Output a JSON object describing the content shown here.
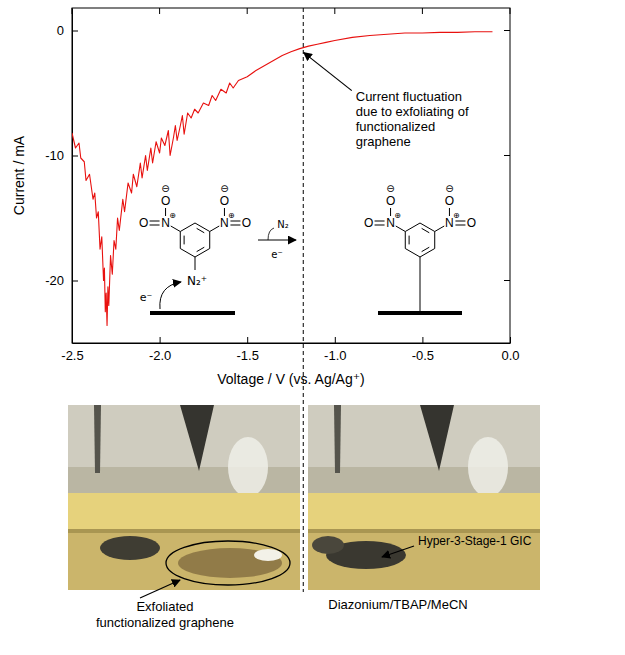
{
  "chart_data": {
    "type": "line",
    "xlabel": "Voltage / V (vs. Ag/Ag⁺)",
    "ylabel": "Current / mA",
    "color": "#e8110f",
    "x": [
      -0.1,
      -0.2,
      -0.3,
      -0.4,
      -0.5,
      -0.6,
      -0.7,
      -0.8,
      -0.9,
      -1.0,
      -1.05,
      -1.1,
      -1.15,
      -1.2,
      -1.25,
      -1.3,
      -1.35,
      -1.4,
      -1.45,
      -1.5,
      -1.55,
      -1.58,
      -1.6,
      -1.62,
      -1.65,
      -1.68,
      -1.7,
      -1.72,
      -1.75,
      -1.78,
      -1.8,
      -1.82,
      -1.84,
      -1.86,
      -1.87,
      -1.88,
      -1.9,
      -1.91,
      -1.92,
      -1.94,
      -1.95,
      -1.97,
      -1.99,
      -2.0,
      -2.02,
      -2.04,
      -2.05,
      -2.07,
      -2.08,
      -2.1,
      -2.11,
      -2.13,
      -2.15,
      -2.16,
      -2.18,
      -2.2,
      -2.21,
      -2.23,
      -2.24,
      -2.25,
      -2.26,
      -2.27,
      -2.28,
      -2.29,
      -2.295,
      -2.3,
      -2.305,
      -2.31,
      -2.315,
      -2.32,
      -2.33,
      -2.34,
      -2.35,
      -2.36,
      -2.37,
      -2.38,
      -2.4,
      -2.42,
      -2.43,
      -2.45,
      -2.46,
      -2.48,
      -2.5
    ],
    "values": [
      -0.1,
      -0.1,
      -0.15,
      -0.15,
      -0.2,
      -0.2,
      -0.3,
      -0.4,
      -0.55,
      -0.8,
      -0.95,
      -1.1,
      -1.25,
      -1.45,
      -1.7,
      -2.0,
      -2.4,
      -2.8,
      -3.2,
      -3.7,
      -4.0,
      -4.6,
      -4.2,
      -5.0,
      -4.7,
      -5.6,
      -5.2,
      -6.0,
      -5.8,
      -6.6,
      -6.3,
      -7.0,
      -6.6,
      -8.3,
      -6.8,
      -7.5,
      -8.8,
      -7.6,
      -8.5,
      -10.0,
      -8.0,
      -9.2,
      -8.6,
      -9.8,
      -8.9,
      -10.6,
      -9.4,
      -11.2,
      -10.0,
      -11.8,
      -10.6,
      -12.5,
      -11.5,
      -13.0,
      -12.2,
      -14.5,
      -13.5,
      -16.0,
      -15.0,
      -17.5,
      -16.8,
      -19.5,
      -18.0,
      -22.0,
      -20.5,
      -23.6,
      -21.0,
      -22.5,
      -19.0,
      -20.0,
      -16.5,
      -17.5,
      -14.5,
      -15.0,
      -13.0,
      -13.5,
      -11.5,
      -12.0,
      -10.5,
      -10.2,
      -9.0,
      -9.4,
      -8.2
    ],
    "xlim": [
      -2.5,
      0.0
    ],
    "ylim": [
      -25,
      1.8
    ],
    "xticks": [
      -2.5,
      {
        "value": -2.0,
        "label": "-2.0"
      },
      -1.5,
      {
        "value": -1.0,
        "label": "-1.0"
      },
      -0.5,
      {
        "value": 0.0,
        "label": "0.0"
      }
    ],
    "yticks": [
      -20,
      -10,
      0
    ],
    "vline": -1.18,
    "annotations": [
      {
        "text": [
          "Current fluctuation",
          "due to exfoliating  of",
          "functionalized",
          "graphene"
        ],
        "x": -1.2,
        "y": -1.45
      }
    ],
    "scheme": {
      "nitrogen": "N",
      "oxygen": "O",
      "negative_charge": "⊖",
      "positive_charge": "⊕",
      "diazonium": "N₂⁺",
      "released": "N₂",
      "electron": "e⁻"
    }
  },
  "photos": {
    "left": {
      "callout": [
        "Exfoliated",
        "functionalized graphene"
      ]
    },
    "right": {
      "caption": "Diazonium/TBAP/MeCN",
      "callout": "Hyper-3-Stage-1 GIC"
    }
  }
}
